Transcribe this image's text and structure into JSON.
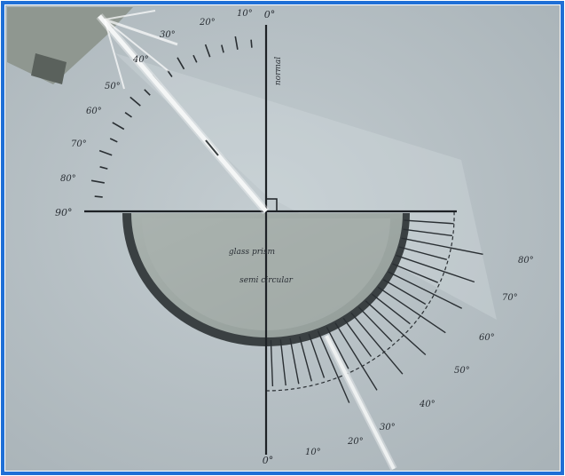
{
  "colors": {
    "frame_border": "#1f6fd6",
    "background": "#b7c1c6",
    "line": "#1e2226",
    "block": "#9fa9a6",
    "block_rim": "#3a4042",
    "light_ray": "#f4f6f6"
  },
  "labels": {
    "top_zero": "0°",
    "bottom_zero": "0°",
    "left_ninety": "90°",
    "normal_axis": "normal",
    "block_text_line1": "glass prism",
    "block_text_line2": "semi circular"
  },
  "incident_scale_labels": [
    "10°",
    "20°",
    "30°",
    "40°",
    "50°",
    "60°",
    "70°",
    "80°"
  ],
  "refracted_scale_labels": [
    "10°",
    "20°",
    "30°",
    "40°",
    "50°",
    "60°",
    "70°",
    "80°"
  ]
}
